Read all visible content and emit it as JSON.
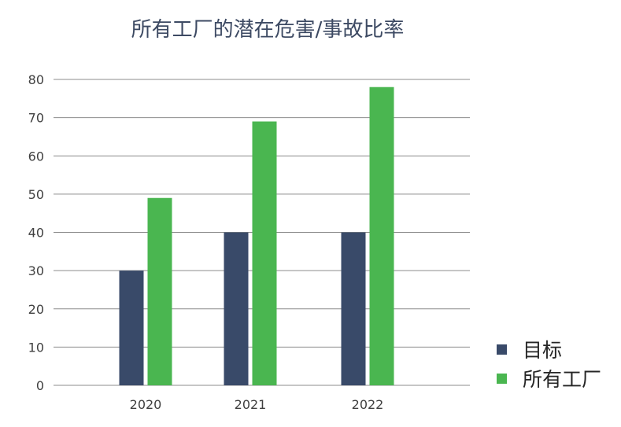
{
  "chart_data": {
    "type": "bar",
    "title": "所有工厂的潜在危害/事故比率",
    "xlabel": "",
    "ylabel": "",
    "categories": [
      "2020",
      "2021",
      "2022"
    ],
    "series": [
      {
        "name": "目标",
        "values": [
          30,
          40,
          40
        ],
        "color": "#394a69"
      },
      {
        "name": "所有工厂",
        "values": [
          49,
          69,
          78
        ],
        "color": "#4ab650"
      }
    ],
    "ylim": [
      0,
      80
    ],
    "yticks": [
      0,
      10,
      20,
      30,
      40,
      50,
      60,
      70,
      80
    ],
    "grid": true,
    "legend_position": "bottom-right"
  }
}
